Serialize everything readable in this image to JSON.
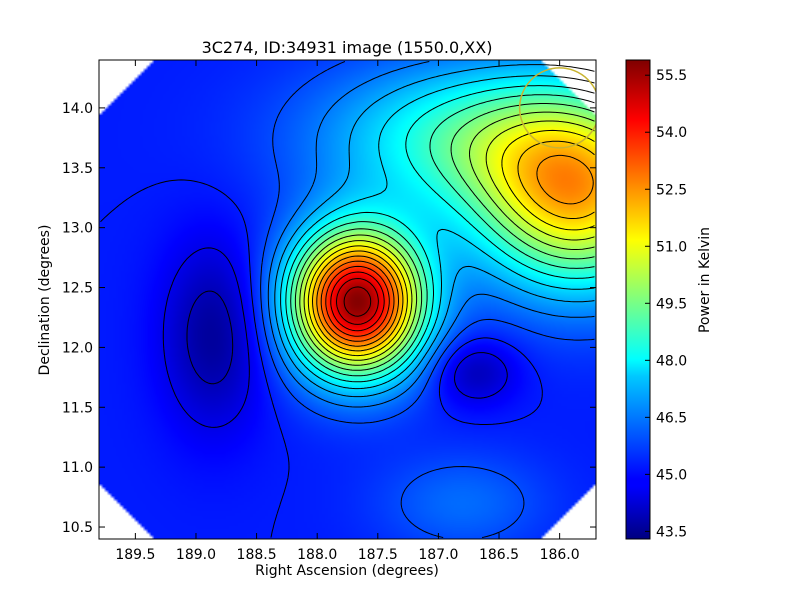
{
  "chart_data": {
    "type": "heatmap",
    "title": "3C274, ID:34931 image (1550.0,XX)",
    "xlabel": "Right Ascension (degrees)",
    "ylabel": "Declination (degrees)",
    "colorbar_label": "Power in Kelvin",
    "x_inverted": true,
    "xlim": [
      189.8,
      185.7
    ],
    "ylim": [
      10.4,
      14.4
    ],
    "x_ticks": [
      "189.5",
      "189.0",
      "188.5",
      "188.0",
      "187.5",
      "187.0",
      "186.5",
      "186.0"
    ],
    "x_tick_values": [
      189.5,
      189.0,
      188.5,
      188.0,
      187.5,
      187.0,
      186.5,
      186.0
    ],
    "y_ticks": [
      "10.5",
      "11.0",
      "11.5",
      "12.0",
      "12.5",
      "13.0",
      "13.5",
      "14.0"
    ],
    "y_tick_values": [
      10.5,
      11.0,
      11.5,
      12.0,
      12.5,
      13.0,
      13.5,
      14.0
    ],
    "colorbar_ticks": [
      "43.5",
      "45.0",
      "46.5",
      "48.0",
      "49.5",
      "51.0",
      "52.5",
      "54.0",
      "55.5"
    ],
    "colorbar_tick_values": [
      43.5,
      45.0,
      46.5,
      48.0,
      49.5,
      51.0,
      52.5,
      54.0,
      55.5
    ],
    "colorbar_range": [
      43.3,
      55.9
    ],
    "colormap": "jet",
    "background_level": 45.2,
    "features": [
      {
        "ra": 187.67,
        "dec": 12.38,
        "peak": 55.8,
        "sigma_ra": 0.38,
        "sigma_dec": 0.42
      },
      {
        "ra": 185.85,
        "dec": 13.25,
        "peak": 51.4,
        "sigma_ra": 0.6,
        "sigma_dec": 0.55
      },
      {
        "ra": 186.7,
        "dec": 13.75,
        "peak": 48.5,
        "sigma_ra": 0.9,
        "sigma_dec": 0.45
      },
      {
        "ra": 188.85,
        "dec": 12.1,
        "peak": 43.6,
        "sigma_ra": 0.3,
        "sigma_dec": 0.55
      },
      {
        "ra": 186.7,
        "dec": 11.8,
        "peak": 43.9,
        "sigma_ra": 0.25,
        "sigma_dec": 0.2
      },
      {
        "ra": 186.8,
        "dec": 10.7,
        "peak": 46.2,
        "sigma_ra": 0.5,
        "sigma_dec": 0.3
      }
    ],
    "beam_circle": {
      "ra": 186.0,
      "dec": 14.0,
      "radius_deg": 0.33,
      "color": "#c8b432"
    }
  }
}
